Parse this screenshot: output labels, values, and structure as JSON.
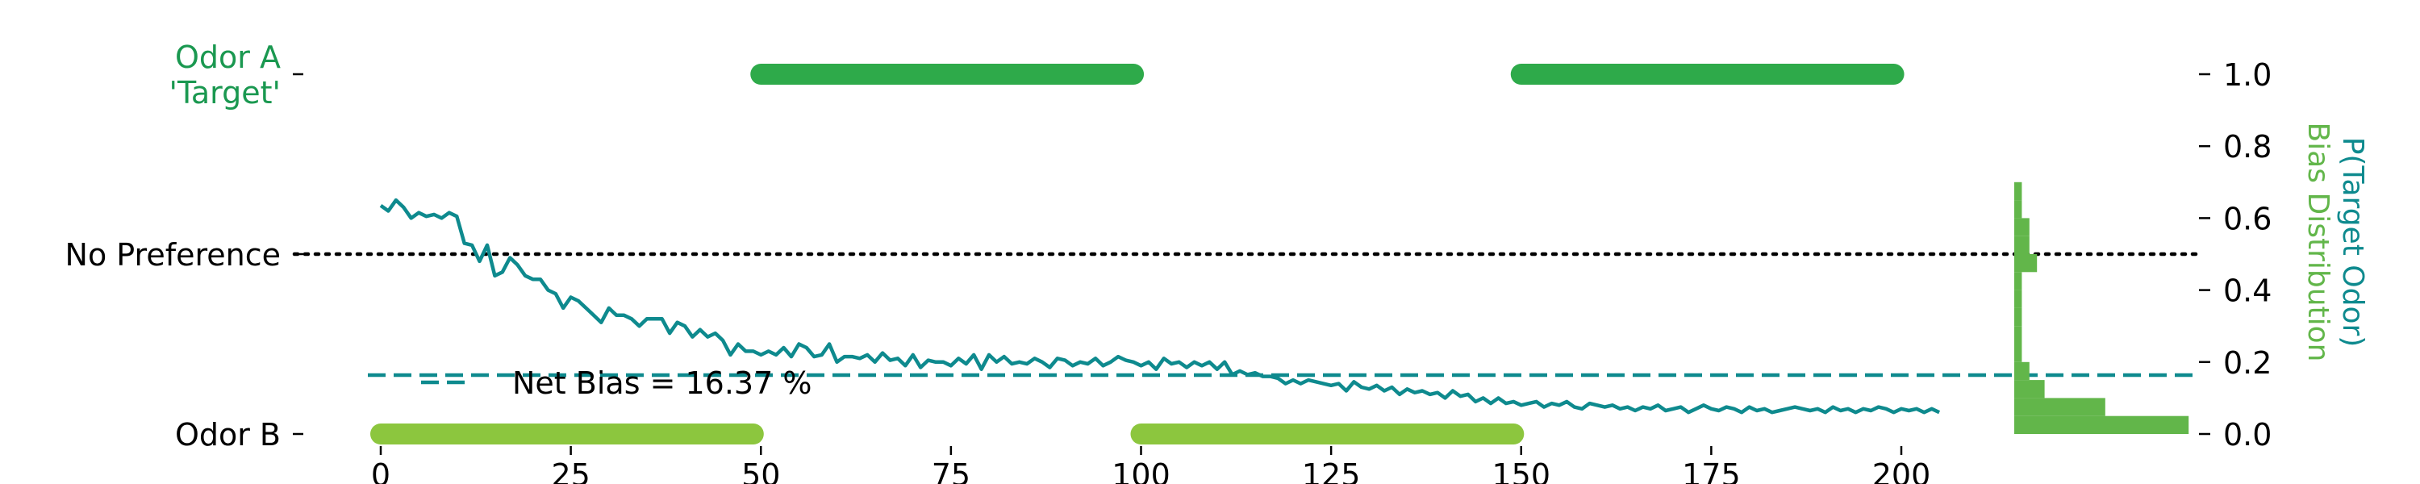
{
  "chart_data": {
    "type": "line",
    "xlabel": "",
    "ylabel_right": [
      "P(Target Odor)",
      "Bias Distribution"
    ],
    "xlim": [
      -2,
      215
    ],
    "ylim": [
      0,
      1
    ],
    "x_ticks": [
      0,
      25,
      50,
      75,
      100,
      125,
      150,
      175,
      200
    ],
    "x_tick_labels": [
      "0",
      "25",
      "50",
      "75",
      "100",
      "125",
      "150",
      "175",
      "200"
    ],
    "y_ticks_right": [
      0.0,
      0.2,
      0.4,
      0.6,
      0.8,
      1.0
    ],
    "y_tick_labels_right": [
      "0.0",
      "0.2",
      "0.4",
      "0.6",
      "0.8",
      "1.0"
    ],
    "y_ticks_left": [
      {
        "value": 0.0,
        "label": [
          "Odor B"
        ],
        "color": "#000000"
      },
      {
        "value": 0.5,
        "label": [
          "No Preference"
        ],
        "color": "#000000"
      },
      {
        "value": 1.0,
        "label": [
          "Odor A",
          "'Target'"
        ],
        "color": "#1a9850"
      }
    ],
    "reference_line": {
      "y": 0.5,
      "style": "dotted",
      "color": "#000000"
    },
    "net_bias": {
      "y": 0.1637,
      "label": "Net Bias = 16.37 %",
      "color": "#0e8a8e",
      "style": "dashed"
    },
    "odor_blocks": [
      {
        "odor": "B",
        "y": 0.0,
        "start": 0,
        "end": 49,
        "color": "#8cc63e"
      },
      {
        "odor": "A",
        "y": 1.0,
        "start": 50,
        "end": 99,
        "color": "#2eaa4a"
      },
      {
        "odor": "B",
        "y": 0.0,
        "start": 100,
        "end": 149,
        "color": "#8cc63e"
      },
      {
        "odor": "A",
        "y": 1.0,
        "start": 150,
        "end": 199,
        "color": "#2eaa4a"
      }
    ],
    "series": [
      {
        "color": "#0e8a8e",
        "x_start": 0,
        "x_step": 1,
        "values": [
          0.635,
          0.62,
          0.65,
          0.63,
          0.6,
          0.615,
          0.605,
          0.61,
          0.6,
          0.615,
          0.605,
          0.53,
          0.525,
          0.48,
          0.525,
          0.44,
          0.45,
          0.49,
          0.47,
          0.44,
          0.43,
          0.43,
          0.4,
          0.39,
          0.35,
          0.38,
          0.37,
          0.35,
          0.33,
          0.31,
          0.35,
          0.33,
          0.33,
          0.32,
          0.3,
          0.32,
          0.32,
          0.32,
          0.28,
          0.31,
          0.3,
          0.27,
          0.29,
          0.27,
          0.28,
          0.26,
          0.22,
          0.25,
          0.23,
          0.23,
          0.22,
          0.23,
          0.22,
          0.24,
          0.215,
          0.25,
          0.24,
          0.215,
          0.22,
          0.25,
          0.2,
          0.215,
          0.215,
          0.21,
          0.22,
          0.2,
          0.225,
          0.205,
          0.21,
          0.19,
          0.22,
          0.185,
          0.205,
          0.2,
          0.2,
          0.19,
          0.21,
          0.195,
          0.22,
          0.18,
          0.22,
          0.2,
          0.215,
          0.195,
          0.2,
          0.195,
          0.21,
          0.2,
          0.185,
          0.21,
          0.205,
          0.19,
          0.2,
          0.195,
          0.21,
          0.19,
          0.2,
          0.215,
          0.205,
          0.2,
          0.19,
          0.2,
          0.18,
          0.21,
          0.195,
          0.2,
          0.185,
          0.2,
          0.19,
          0.2,
          0.18,
          0.2,
          0.165,
          0.175,
          0.165,
          0.17,
          0.16,
          0.16,
          0.155,
          0.14,
          0.15,
          0.14,
          0.15,
          0.145,
          0.14,
          0.135,
          0.14,
          0.12,
          0.145,
          0.13,
          0.125,
          0.135,
          0.12,
          0.13,
          0.11,
          0.125,
          0.115,
          0.12,
          0.11,
          0.115,
          0.1,
          0.12,
          0.105,
          0.11,
          0.09,
          0.1,
          0.085,
          0.1,
          0.085,
          0.09,
          0.08,
          0.085,
          0.09,
          0.075,
          0.085,
          0.08,
          0.09,
          0.075,
          0.07,
          0.085,
          0.08,
          0.075,
          0.08,
          0.07,
          0.075,
          0.065,
          0.075,
          0.07,
          0.08,
          0.065,
          0.07,
          0.075,
          0.06,
          0.07,
          0.08,
          0.07,
          0.065,
          0.075,
          0.07,
          0.06,
          0.075,
          0.065,
          0.07,
          0.06,
          0.065,
          0.07,
          0.075,
          0.07,
          0.065,
          0.07,
          0.06,
          0.075,
          0.065,
          0.07,
          0.06,
          0.07,
          0.065,
          0.075,
          0.07,
          0.06,
          0.07,
          0.065,
          0.07,
          0.06,
          0.07,
          0.06
        ]
      }
    ],
    "bias_distribution": {
      "color": "#62b64a",
      "bin_edges": [
        0.0,
        0.05,
        0.1,
        0.15,
        0.2,
        0.25,
        0.3,
        0.35,
        0.4,
        0.45,
        0.5,
        0.55,
        0.6,
        0.65,
        0.7
      ],
      "counts": [
        23,
        12,
        4,
        2,
        1,
        1,
        1,
        1,
        1,
        3,
        2,
        2,
        1,
        1
      ]
    }
  }
}
